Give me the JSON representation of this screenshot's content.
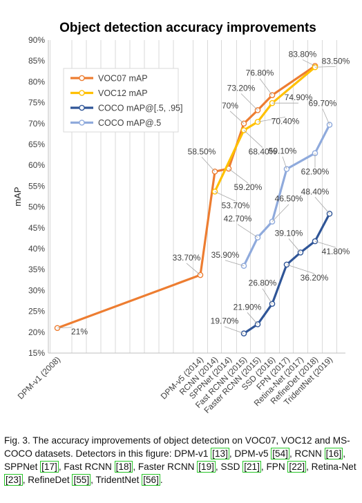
{
  "chart_data": {
    "type": "line",
    "title": "Object detection accuracy improvements",
    "xlabel": "",
    "ylabel": "mAP",
    "ylim": [
      0.15,
      0.9
    ],
    "yticks": [
      "15%",
      "20%",
      "25%",
      "30%",
      "35%",
      "40%",
      "45%",
      "50%",
      "55%",
      "60%",
      "65%",
      "70%",
      "75%",
      "80%",
      "85%",
      "90%"
    ],
    "grid": "vertical",
    "legend_position": "upper-left",
    "categories": [
      "DPM-v1 (2008)",
      "DPM-v5 (2014)",
      "RCNN (2014)",
      "SPPNet (2014)",
      "Fast RCNN (2015)",
      "Faster RCNN (2015)",
      "SSD (2016)",
      "FPN (2017)",
      "Retina-Net (2017)",
      "RefineDet (2018)",
      "TridentNet (2019)"
    ],
    "series": [
      {
        "name": "VOC07 mAP",
        "color": "#ed7d31",
        "values": [
          0.21,
          0.337,
          0.585,
          0.592,
          0.7,
          0.732,
          0.768,
          null,
          null,
          0.838,
          null
        ],
        "labels": [
          "21%",
          "33.70%",
          "58.50%",
          "59.20%",
          "70%",
          "73.20%",
          "76.80%",
          null,
          null,
          "83.80%",
          null
        ]
      },
      {
        "name": "VOC12 mAP",
        "color": "#ffc000",
        "values": [
          null,
          null,
          0.537,
          null,
          0.684,
          0.704,
          0.749,
          null,
          null,
          0.835,
          null
        ],
        "labels": [
          null,
          null,
          "53.70%",
          null,
          "68.40%",
          "70.40%",
          "74.90%",
          null,
          null,
          "83.50%",
          null
        ]
      },
      {
        "name": "COCO mAP@[.5, .95]",
        "color": "#2f5597",
        "values": [
          null,
          null,
          null,
          null,
          0.197,
          0.219,
          0.268,
          0.362,
          0.391,
          0.418,
          0.484
        ],
        "labels": [
          null,
          null,
          null,
          null,
          "19.70%",
          "21.90%",
          "26.80%",
          "36.20%",
          "39.10%",
          "41.80%",
          "48.40%"
        ]
      },
      {
        "name": "COCO mAP@.5",
        "color": "#8faadc",
        "values": [
          null,
          null,
          null,
          null,
          0.359,
          0.427,
          0.465,
          0.591,
          null,
          0.629,
          0.697
        ],
        "labels": [
          null,
          null,
          null,
          null,
          "35.90%",
          "42.70%",
          "46.50%",
          "59.10%",
          null,
          "62.90%",
          "69.70%"
        ]
      }
    ]
  },
  "caption": {
    "text_before": "Fig. 3. The accuracy improvements of object detection on VOC07, VOC12 and MS-COCO datasets. Detectors in this figure: DPM-v1 ",
    "segments": [
      {
        "name": "DPM-v1",
        "cite": "[13]",
        "sep": ", DPM-v5 "
      },
      {
        "name": "DPM-v5",
        "cite": "[54]",
        "sep": ", RCNN "
      },
      {
        "name": "RCNN",
        "cite": "[16]",
        "sep": ", SPPNet "
      },
      {
        "name": "SPPNet",
        "cite": "[17]",
        "sep": ", Fast RCNN "
      },
      {
        "name": "Fast RCNN",
        "cite": "[18]",
        "sep": ", Faster RCNN "
      },
      {
        "name": "Faster RCNN",
        "cite": "[19]",
        "sep": ", SSD "
      },
      {
        "name": "SSD",
        "cite": "[21]",
        "sep": ", FPN "
      },
      {
        "name": "FPN",
        "cite": "[22]",
        "sep": ", Retina-Net "
      },
      {
        "name": "Retina-Net",
        "cite": "[23]",
        "sep": ", RefineDet "
      },
      {
        "name": "RefineDet",
        "cite": "[55]",
        "sep": ", TridentNet "
      },
      {
        "name": "TridentNet",
        "cite": "[56]",
        "sep": "."
      }
    ]
  }
}
